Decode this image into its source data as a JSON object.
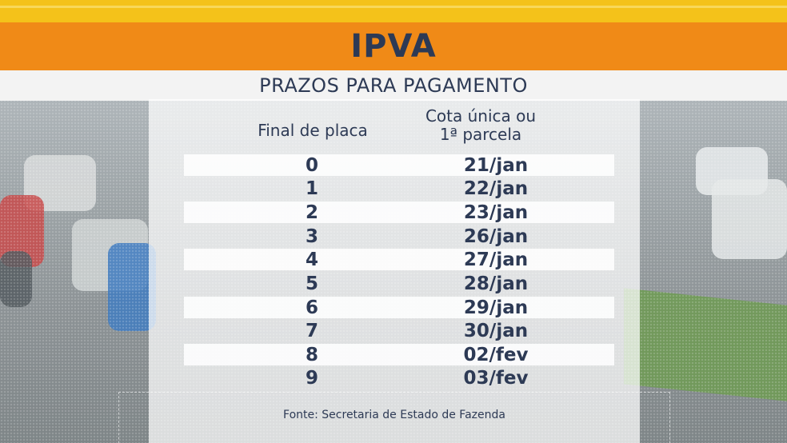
{
  "banner": {
    "title": "IPVA"
  },
  "subheader": {
    "title": "PRAZOS PARA PAGAMENTO"
  },
  "table": {
    "headers": {
      "plate": "Final de placa",
      "date_line1": "Cota única ou",
      "date_line2": "1ª parcela"
    },
    "rows": [
      {
        "plate": "0",
        "date": "21/jan"
      },
      {
        "plate": "1",
        "date": "22/jan"
      },
      {
        "plate": "2",
        "date": "23/jan"
      },
      {
        "plate": "3",
        "date": "26/jan"
      },
      {
        "plate": "4",
        "date": "27/jan"
      },
      {
        "plate": "5",
        "date": "28/jan"
      },
      {
        "plate": "6",
        "date": "29/jan"
      },
      {
        "plate": "7",
        "date": "30/jan"
      },
      {
        "plate": "8",
        "date": "02/fev"
      },
      {
        "plate": "9",
        "date": "03/fev"
      }
    ]
  },
  "source": "Fonte: Secretaria de Estado de Fazenda",
  "colors": {
    "banner": "#f08a17",
    "stripe": "#f4c21a",
    "text": "#2d3a55"
  }
}
